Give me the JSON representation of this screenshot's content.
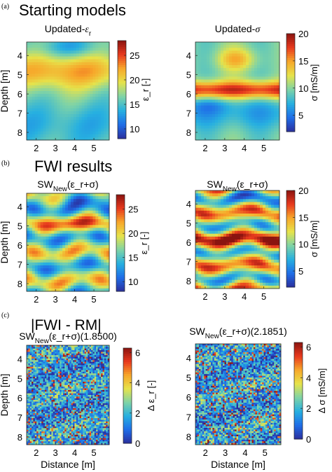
{
  "figure": {
    "panel_labels": [
      "(a)",
      "(b)",
      "(c)"
    ],
    "section_titles": [
      "Starting models",
      "FWI results",
      "|FWI - RM|"
    ]
  },
  "colormap": [
    "#2b2f9e",
    "#1f6ee8",
    "#27b0e0",
    "#7fd3a6",
    "#e6e34b",
    "#f7a72a",
    "#e8391e",
    "#8a1410"
  ],
  "chart_data": [
    {
      "type": "heatmap",
      "id": "a-left",
      "title_main": "Updated-",
      "title_math": "ε",
      "title_sub": "r",
      "xlabel": "",
      "ylabel": "Depth [m]",
      "xlim": [
        1.5,
        5.8
      ],
      "ylim": [
        3.3,
        8.4
      ],
      "xticks": [
        2,
        3,
        4,
        5
      ],
      "yticks": [
        4,
        5,
        6,
        7,
        8
      ],
      "cbar_label": "ε_r [-]",
      "cbar_ticks": [
        10,
        15,
        20,
        25
      ],
      "cbar_range": [
        8,
        28
      ],
      "pattern": "smooth-eps"
    },
    {
      "type": "heatmap",
      "id": "a-right",
      "title_main": "Updated-",
      "title_math": "σ",
      "title_sub": "",
      "xlabel": "",
      "ylabel": "",
      "xlim": [
        1.5,
        5.8
      ],
      "ylim": [
        3.3,
        8.4
      ],
      "xticks": [
        2,
        3,
        4,
        5
      ],
      "yticks": [
        4,
        5,
        6,
        7,
        8
      ],
      "cbar_label": "σ [mS/m]",
      "cbar_ticks": [
        5,
        10,
        15,
        20
      ],
      "cbar_range": [
        2,
        20
      ],
      "pattern": "smooth-sig"
    },
    {
      "type": "heatmap",
      "id": "b-left",
      "title_main": "SW",
      "title_sub": "New",
      "title_tail": "(ε_r+σ)",
      "xlabel": "",
      "ylabel": "Depth [m]",
      "xlim": [
        1.5,
        5.8
      ],
      "ylim": [
        3.3,
        8.4
      ],
      "xticks": [
        2,
        3,
        4,
        5
      ],
      "yticks": [
        4,
        5,
        6,
        7,
        8
      ],
      "cbar_label": "ε_r [-]",
      "cbar_ticks": [
        10,
        15,
        20,
        25
      ],
      "cbar_range": [
        8,
        28
      ],
      "pattern": "layer-eps"
    },
    {
      "type": "heatmap",
      "id": "b-right",
      "title_main": "SW",
      "title_sub": "New",
      "title_tail": "(ε_r+σ)",
      "xlabel": "",
      "ylabel": "",
      "xlim": [
        1.5,
        5.8
      ],
      "ylim": [
        3.3,
        8.4
      ],
      "xticks": [
        2,
        3,
        4,
        5
      ],
      "yticks": [
        4,
        5,
        6,
        7,
        8
      ],
      "cbar_label": "σ [mS/m]",
      "cbar_ticks": [
        5,
        10,
        15,
        20
      ],
      "cbar_range": [
        2,
        20
      ],
      "pattern": "layer-sig"
    },
    {
      "type": "heatmap",
      "id": "c-left",
      "title_main": "SW",
      "title_sub": "New",
      "title_tail": "(ε_r+σ)(1.8500)",
      "xlabel": "Distance [m]",
      "ylabel": "Depth [m]",
      "xlim": [
        1.5,
        5.8
      ],
      "ylim": [
        3.3,
        8.4
      ],
      "xticks": [
        2,
        3,
        4,
        5
      ],
      "yticks": [
        4,
        5,
        6,
        7,
        8
      ],
      "cbar_label": "Δ ε_r [-]",
      "cbar_ticks": [
        0,
        2,
        4,
        6
      ],
      "cbar_range": [
        0,
        6.3
      ],
      "pattern": "noise"
    },
    {
      "type": "heatmap",
      "id": "c-right",
      "title_main": "SW",
      "title_sub": "New",
      "title_tail": "(ε_r+σ)(2.1851)",
      "xlabel": "Distance [m]",
      "ylabel": "",
      "xlim": [
        1.5,
        5.8
      ],
      "ylim": [
        3.3,
        8.4
      ],
      "xticks": [
        2,
        3,
        4,
        5
      ],
      "yticks": [
        4,
        5,
        6,
        7,
        8
      ],
      "cbar_label": "Δ σ [mS/m]",
      "cbar_ticks": [
        0,
        2,
        4,
        6
      ],
      "cbar_range": [
        0,
        6.3
      ],
      "pattern": "noise"
    }
  ]
}
